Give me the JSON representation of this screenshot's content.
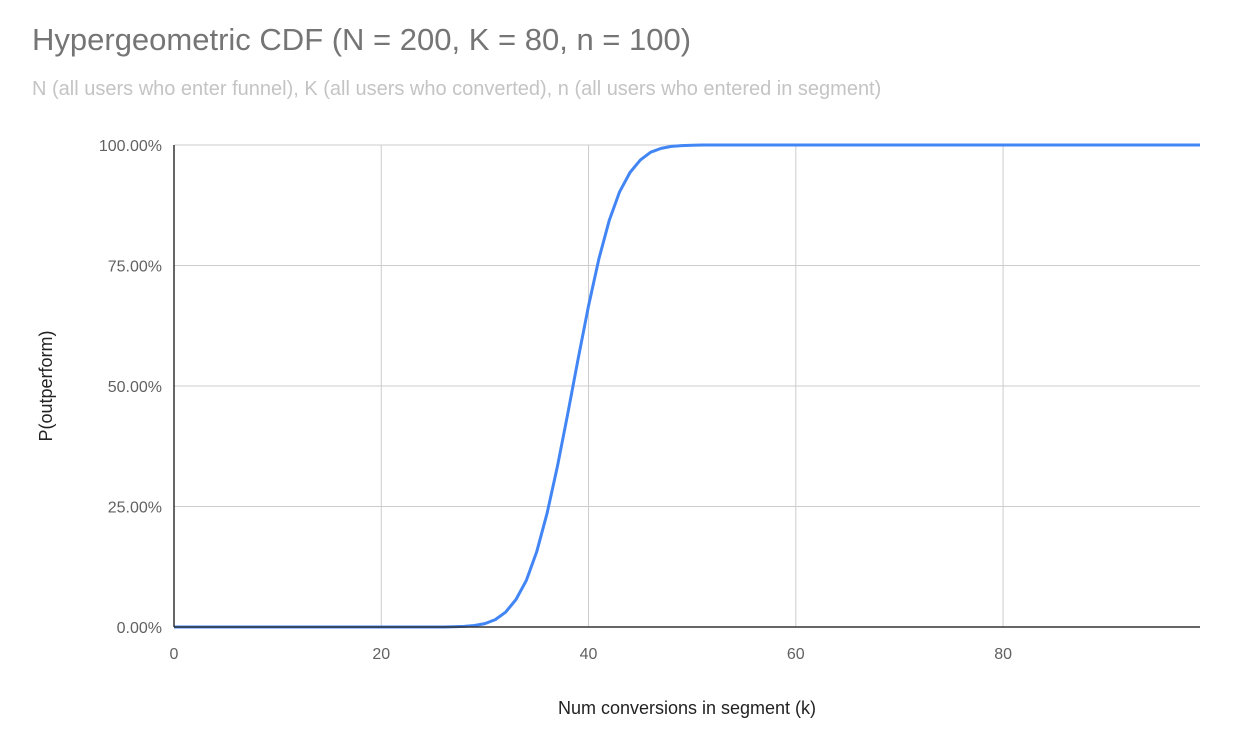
{
  "chart_data": {
    "type": "line",
    "title": "Hypergeometric CDF (N = 200, K = 80, n = 100)",
    "subtitle": "N (all users who enter funnel), K (all users who converted), n (all users who entered in segment)",
    "xlabel": "Num conversions in segment (k)",
    "ylabel": "P(outperform)",
    "xlim": [
      0,
      99
    ],
    "ylim": [
      0,
      100
    ],
    "x_ticks": [
      0,
      20,
      40,
      60,
      80
    ],
    "x_tick_labels": [
      "0",
      "20",
      "40",
      "60",
      "80"
    ],
    "y_ticks": [
      0,
      25,
      50,
      75,
      100
    ],
    "y_tick_labels": [
      "0.00%",
      "25.00%",
      "50.00%",
      "75.00%",
      "100.00%"
    ],
    "grid": true,
    "legend": "none",
    "line_color": "#4285f4",
    "series": [
      {
        "x": [
          0,
          1,
          2,
          3,
          4,
          5,
          6,
          7,
          8,
          9,
          10,
          11,
          12,
          13,
          14,
          15,
          16,
          17,
          18,
          19,
          20,
          21,
          22,
          23,
          24,
          25,
          26,
          27,
          28,
          29,
          30,
          31,
          32,
          33,
          34,
          35,
          36,
          37,
          38,
          39,
          40,
          41,
          42,
          43,
          44,
          45,
          46,
          47,
          48,
          49,
          50,
          51,
          52,
          53,
          54,
          55,
          56,
          57,
          58,
          59,
          60,
          61,
          62,
          63,
          64,
          65,
          66,
          67,
          68,
          69,
          70,
          71,
          72,
          73,
          74,
          75,
          76,
          77,
          78,
          79,
          80,
          81,
          82,
          83,
          84,
          85,
          86,
          87,
          88,
          89,
          90,
          91,
          92,
          93,
          94,
          95,
          96,
          97,
          98,
          99
        ],
        "y": [
          0,
          0,
          0,
          0,
          0,
          0,
          0,
          0,
          0,
          0,
          0,
          0,
          0,
          0,
          0,
          0,
          0,
          0,
          0,
          0,
          0,
          0,
          0,
          0,
          0,
          0,
          0,
          0.05,
          0.13,
          0.31,
          0.71,
          1.54,
          3.07,
          5.71,
          9.68,
          15.6,
          23.6,
          33.4,
          44.3,
          55.7,
          66.6,
          76.4,
          84.4,
          90.3,
          94.3,
          96.9,
          98.5,
          99.3,
          99.7,
          99.87,
          99.95,
          100,
          100,
          100,
          100,
          100,
          100,
          100,
          100,
          100,
          100,
          100,
          100,
          100,
          100,
          100,
          100,
          100,
          100,
          100,
          100,
          100,
          100,
          100,
          100,
          100,
          100,
          100,
          100,
          100,
          100,
          100,
          100,
          100,
          100,
          100,
          100,
          100,
          100,
          100,
          100,
          100,
          100,
          100,
          100,
          100,
          100,
          100,
          100,
          100
        ]
      }
    ]
  }
}
